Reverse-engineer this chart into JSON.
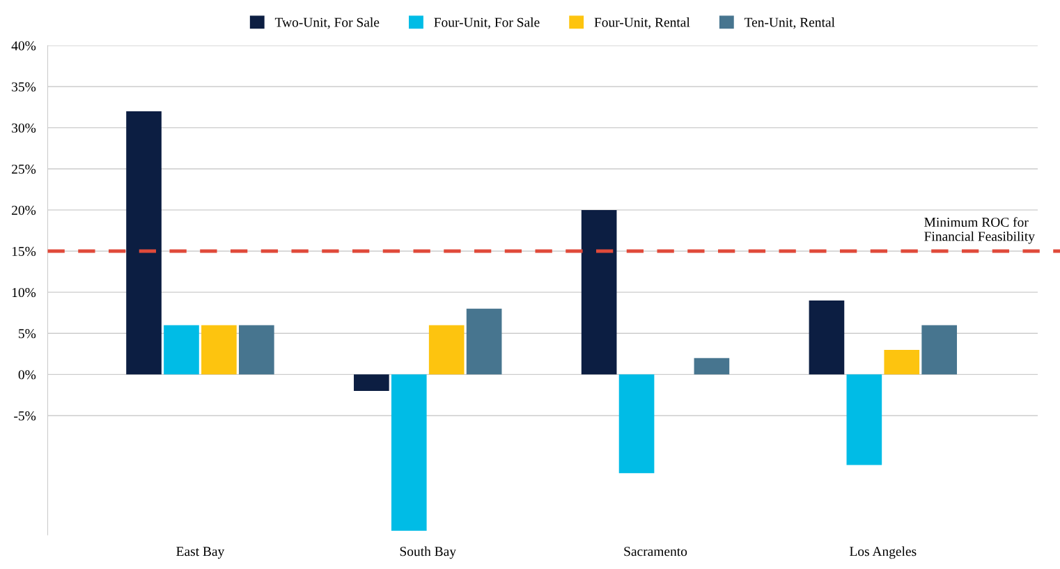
{
  "chart_data": {
    "type": "bar",
    "categories": [
      "East Bay",
      "South Bay",
      "Sacramento",
      "Los Angeles"
    ],
    "series": [
      {
        "name": "Two-Unit, For Sale",
        "color": "#0c1e42",
        "values": [
          32,
          -2,
          20,
          9
        ]
      },
      {
        "name": "Four-Unit, For Sale",
        "color": "#00bce6",
        "values": [
          6,
          -19,
          -12,
          -11
        ]
      },
      {
        "name": "Four-Unit, Rental",
        "color": "#fdc40f",
        "values": [
          6,
          6,
          0,
          3
        ]
      },
      {
        "name": "Ten-Unit, Rental",
        "color": "#47758f",
        "values": [
          6,
          8,
          2,
          6
        ]
      }
    ],
    "ylim": [
      -19.5,
      40
    ],
    "yticks": [
      {
        "value": -5,
        "label": "-5%"
      },
      {
        "value": 0,
        "label": "0%"
      },
      {
        "value": 5,
        "label": "5%"
      },
      {
        "value": 10,
        "label": "10%"
      },
      {
        "value": 15,
        "label": "15%"
      },
      {
        "value": 20,
        "label": "20%"
      },
      {
        "value": 25,
        "label": "25%"
      },
      {
        "value": 30,
        "label": "30%"
      },
      {
        "value": 35,
        "label": "35%"
      },
      {
        "value": 40,
        "label": "40%"
      }
    ],
    "grid": "y",
    "legend": "top",
    "ref_lines": [
      {
        "axis": "y",
        "value": 15,
        "label": "Minimum ROC for\nFinancial Feasibility",
        "color": "#e04a3a",
        "line_style": "dashed"
      }
    ]
  }
}
